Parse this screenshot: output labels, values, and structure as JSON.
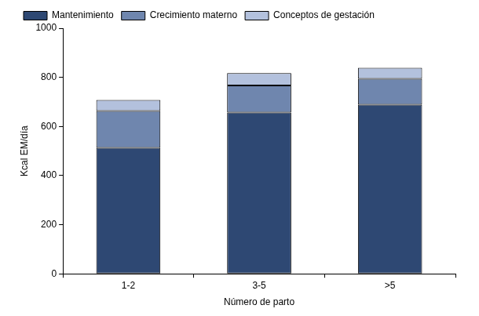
{
  "chart_data": {
    "type": "bar",
    "stacked": true,
    "x_label": "Número de parto",
    "y_label": "Kcal EM/día",
    "categories": [
      "1-2",
      "3-5",
      ">5"
    ],
    "series": [
      {
        "name": "Mantenimiento",
        "color": "#2e4873",
        "values": [
          513,
          657,
          689
        ]
      },
      {
        "name": "Crecimiento materno",
        "color": "#6f86ae",
        "values": [
          150,
          110,
          105
        ]
      },
      {
        "name": "Conceptos de gestación",
        "color": "#b3c1dd",
        "values": [
          45,
          50,
          45
        ]
      }
    ],
    "ylim": [
      0,
      1000
    ],
    "yticks": [
      0,
      200,
      400,
      600,
      800,
      1000
    ],
    "grid": false,
    "legend": "upper left"
  }
}
